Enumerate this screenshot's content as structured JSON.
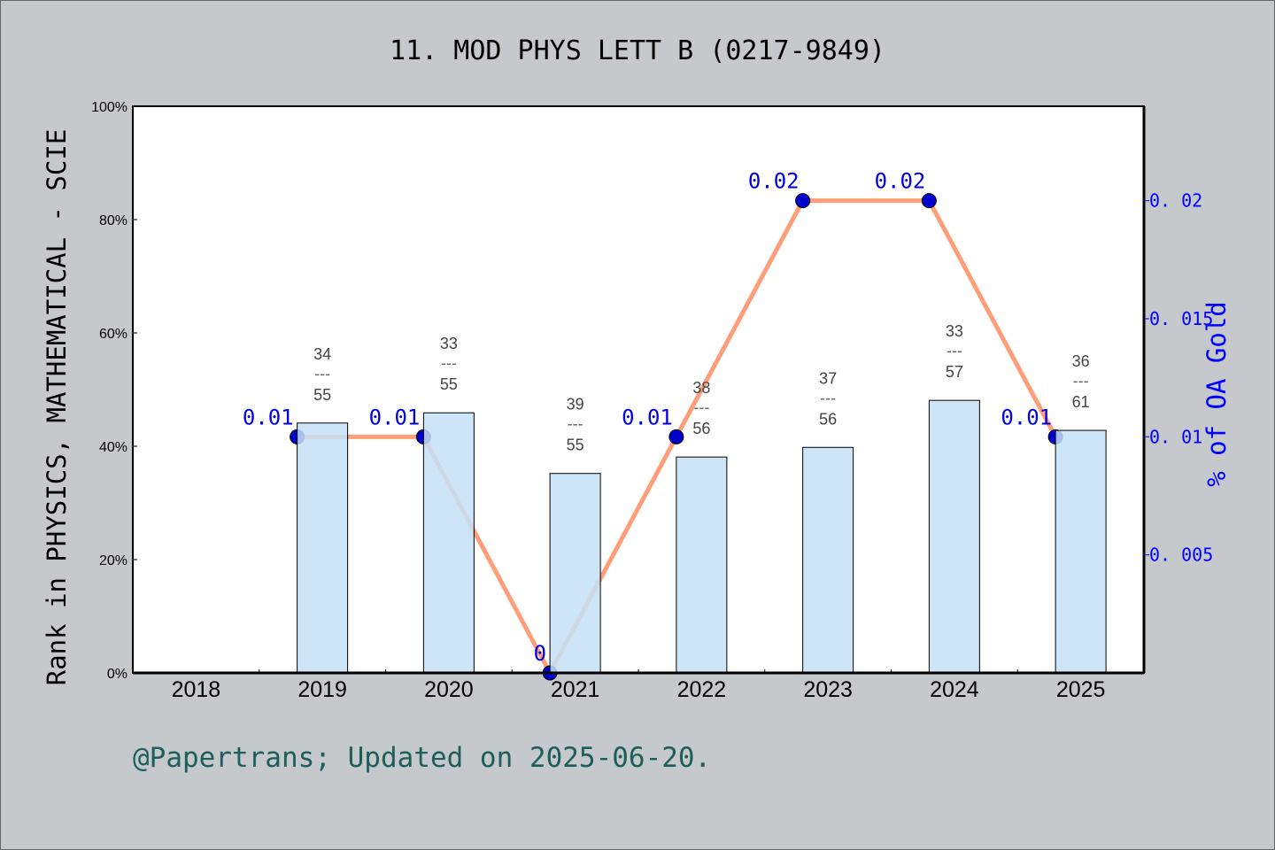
{
  "chart_data": {
    "type": "bar+line",
    "title": "11. MOD PHYS LETT B (0217-9849)",
    "ylabel": "Rank in PHYSICS, MATHEMATICAL - SCIE",
    "y2label": "% of OA Gold",
    "footer": "@Papertrans; Updated on 2025-06-20.",
    "categories": [
      "2018",
      "2019",
      "2020",
      "2021",
      "2022",
      "2023",
      "2024",
      "2025"
    ],
    "ylim": [
      0,
      100
    ],
    "yticks": [
      "0%",
      "20%",
      "40%",
      "60%",
      "80%",
      "100%"
    ],
    "y2lim": [
      0,
      0.024
    ],
    "y2ticks": [
      "0.005",
      "0.01",
      "0.015",
      "0.02"
    ],
    "bar_series": {
      "values": [
        null,
        44.1,
        45.9,
        35.2,
        38.1,
        39.8,
        48.1,
        42.8
      ],
      "rank_labels": [
        null,
        [
          "34",
          "55"
        ],
        [
          "33",
          "55"
        ],
        [
          "39",
          "55"
        ],
        [
          "38",
          "56"
        ],
        [
          "37",
          "56"
        ],
        [
          "33",
          "57"
        ],
        [
          "36",
          "61"
        ]
      ],
      "color": "#c5e0f7"
    },
    "line_series": {
      "values": [
        null,
        0.01,
        0.01,
        0,
        0.01,
        0.02,
        0.02,
        0.01
      ],
      "labels": [
        null,
        "0.01",
        "0.01",
        "0",
        "0.01",
        "0.02",
        "0.02",
        "0.01"
      ],
      "line_color": "#ff9e78",
      "marker_color": "#0000cc"
    },
    "grid": false
  }
}
